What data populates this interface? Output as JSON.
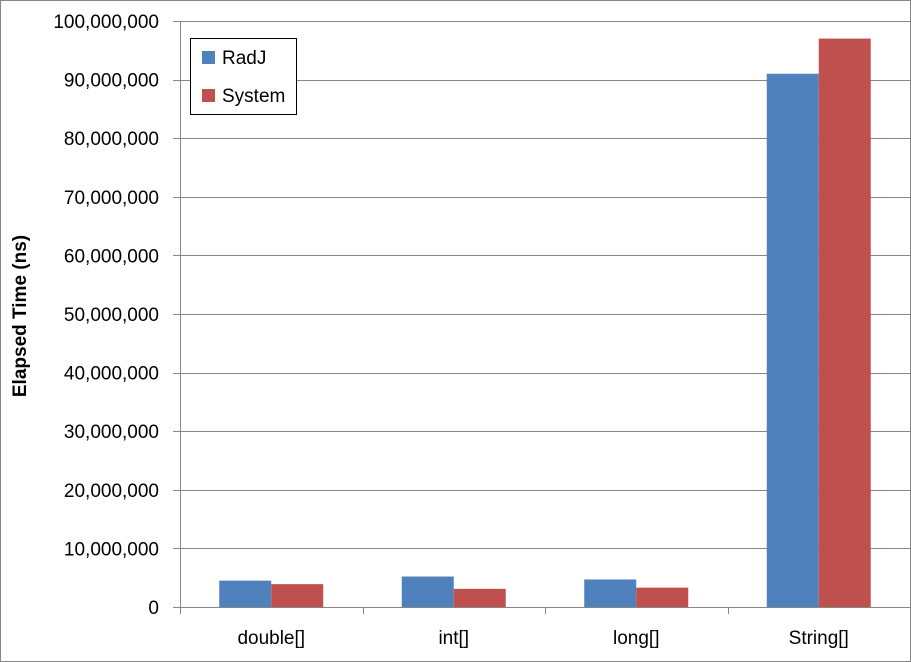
{
  "chart_data": {
    "type": "bar",
    "title": "",
    "xlabel": "",
    "ylabel": "Elapsed Time (ns)",
    "categories": [
      "double[]",
      "int[]",
      "long[]",
      "String[]"
    ],
    "series": [
      {
        "name": "RadJ",
        "color": "#4f81bd",
        "values": [
          4500000,
          5200000,
          4700000,
          91000000
        ]
      },
      {
        "name": "System",
        "color": "#c0504d",
        "values": [
          3900000,
          3100000,
          3300000,
          97000000
        ]
      }
    ],
    "ylim": [
      0,
      100000000
    ],
    "yticks": [
      0,
      10000000,
      20000000,
      30000000,
      40000000,
      50000000,
      60000000,
      70000000,
      80000000,
      90000000,
      100000000
    ],
    "ytick_labels": [
      "0",
      "10,000,000",
      "20,000,000",
      "30,000,000",
      "40,000,000",
      "50,000,000",
      "60,000,000",
      "70,000,000",
      "80,000,000",
      "90,000,000",
      "100,000,000"
    ],
    "grid": true,
    "legend_position": "top-left"
  }
}
